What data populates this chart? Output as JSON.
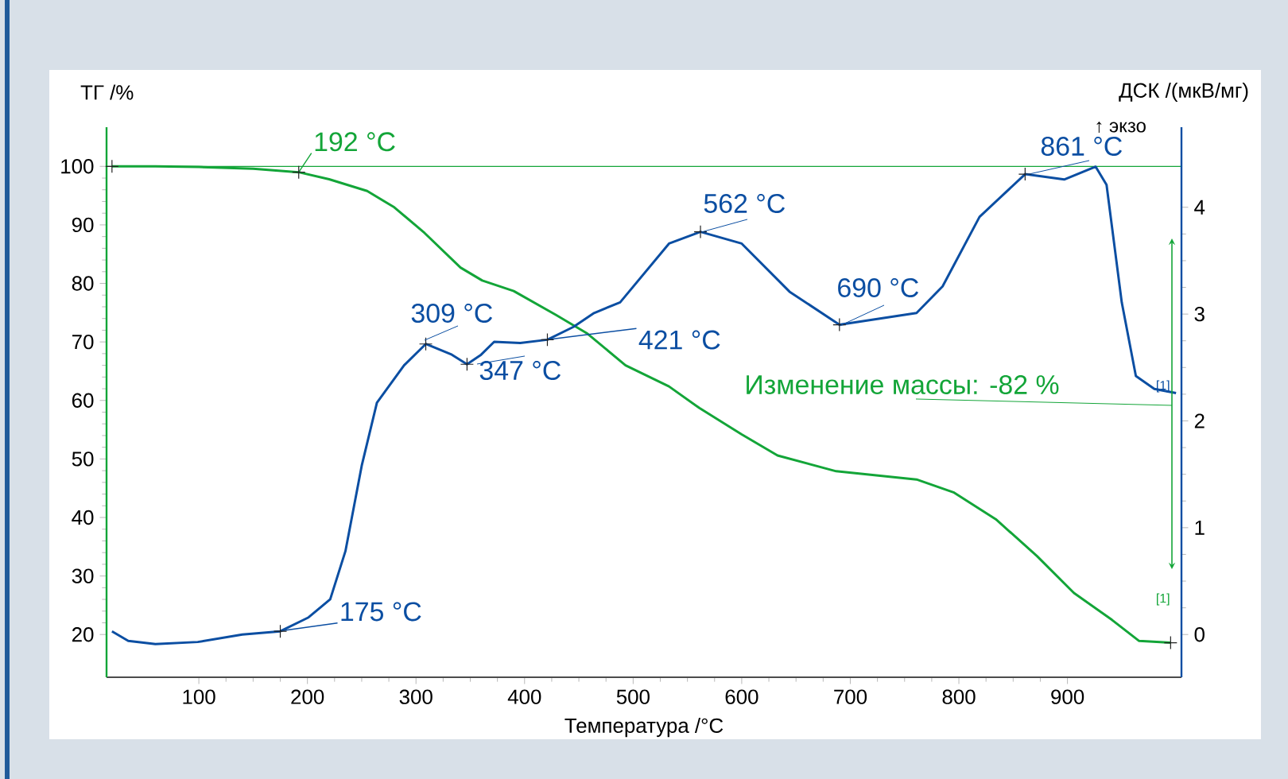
{
  "chart_data": {
    "type": "line",
    "xlabel": "Температура /°C",
    "ylabel": "ТГ /%",
    "y2label": "ДСК /(мкВ/мг)",
    "xlim": [
      15,
      1005
    ],
    "ylim": [
      12.7,
      106.7
    ],
    "y2lim": [
      -0.4,
      4.75
    ],
    "xticks": [
      100,
      200,
      300,
      400,
      500,
      600,
      700,
      800,
      900
    ],
    "yticks": [
      20,
      30,
      40,
      50,
      60,
      70,
      80,
      90,
      100
    ],
    "y2ticks": [
      0,
      1,
      2,
      3,
      4
    ],
    "grid": false,
    "marker": "none",
    "series": [
      {
        "color": "#13a538",
        "x": [
          20,
          60,
          100,
          150,
          192,
          220,
          255,
          280,
          308,
          341,
          361,
          390,
          429,
          458,
          493,
          533,
          561,
          600,
          633,
          687,
          761,
          795,
          834,
          872,
          906,
          941,
          966,
          995
        ],
        "values": [
          100,
          100,
          99.9,
          99.6,
          99,
          97.8,
          95.8,
          93,
          88.6,
          82.7,
          80.5,
          78.7,
          74.6,
          71.4,
          66,
          62.4,
          58.7,
          54.2,
          50.6,
          47.9,
          46.5,
          44.3,
          39.7,
          33.4,
          27.1,
          22.5,
          18.9,
          18.6
        ]
      },
      {
        "color": "#0b4ea2",
        "axis": "y2",
        "x": [
          20,
          35,
          60,
          99,
          140,
          175,
          201,
          221,
          235,
          250,
          264,
          289,
          309,
          333,
          347,
          360,
          372,
          396,
          421,
          445,
          464,
          488,
          533,
          562,
          600,
          644,
          690,
          761,
          785,
          819,
          861,
          897,
          926,
          936,
          950,
          963,
          980,
          1000
        ],
        "values": [
          0.03,
          -0.06,
          -0.09,
          -0.07,
          0.0,
          0.03,
          0.16,
          0.33,
          0.78,
          1.58,
          2.17,
          2.52,
          2.72,
          2.62,
          2.53,
          2.62,
          2.74,
          2.73,
          2.76,
          2.88,
          3.01,
          3.11,
          3.66,
          3.77,
          3.66,
          3.21,
          2.9,
          3.01,
          3.26,
          3.91,
          4.31,
          4.26,
          4.38,
          4.21,
          3.11,
          2.42,
          2.3,
          2.26
        ]
      },
      {
        "type": "scatter",
        "marker": "cross",
        "color": "#222222",
        "x": [
          20,
          192,
          995
        ],
        "values": [
          100,
          99,
          18.6
        ]
      },
      {
        "type": "scatter",
        "marker": "cross",
        "color": "#222222",
        "axis": "y2",
        "x": [
          175,
          309,
          347,
          421,
          562,
          690,
          861
        ],
        "values": [
          0.03,
          2.72,
          2.53,
          2.76,
          3.77,
          2.9,
          4.31
        ]
      }
    ],
    "ref_lines": [
      {
        "axis": "y",
        "value": 100,
        "color": "#13a538"
      }
    ],
    "annotations": [
      {
        "text": "192 °C",
        "x": 192,
        "y": 99
      },
      {
        "text": "175 °C",
        "x": 175,
        "y": 20.6
      },
      "309 °C",
      "347 °C",
      {
        "text": "421 °C",
        "x": 421,
        "y": 70.4
      },
      "562 °C",
      "690 °C",
      "861 °C",
      "Изменение массы: -82 %",
      "[1]",
      "[1]",
      "↑ экзо"
    ]
  }
}
